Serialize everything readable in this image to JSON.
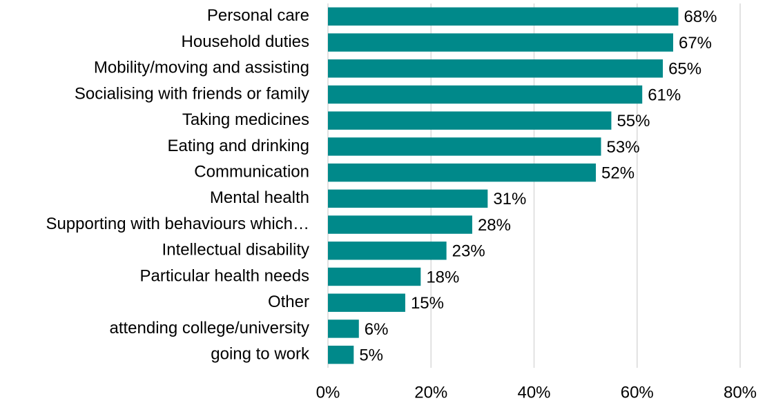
{
  "chart_data": {
    "type": "barh",
    "categories": [
      "Personal care",
      "Household duties",
      "Mobility/moving and assisting",
      "Socialising with friends or family",
      "Taking medicines",
      "Eating and drinking",
      "Communication",
      "Mental health",
      "Supporting with behaviours which…",
      "Intellectual disability",
      "Particular health needs",
      "Other",
      "attending college/university",
      "going to work"
    ],
    "values": [
      68,
      67,
      65,
      61,
      55,
      53,
      52,
      31,
      28,
      23,
      18,
      15,
      6,
      5
    ],
    "value_labels": [
      "68%",
      "67%",
      "65%",
      "61%",
      "55%",
      "53%",
      "52%",
      "31%",
      "28%",
      "23%",
      "18%",
      "15%",
      "6%",
      "5%"
    ],
    "color": "#00898a",
    "xlim": [
      0,
      80
    ],
    "xticks": [
      {
        "value": 0,
        "label": "0%"
      },
      {
        "value": 20,
        "label": "20%"
      },
      {
        "value": 40,
        "label": "40%"
      },
      {
        "value": 60,
        "label": "60%"
      },
      {
        "value": 80,
        "label": "80%"
      }
    ],
    "grid": true
  }
}
